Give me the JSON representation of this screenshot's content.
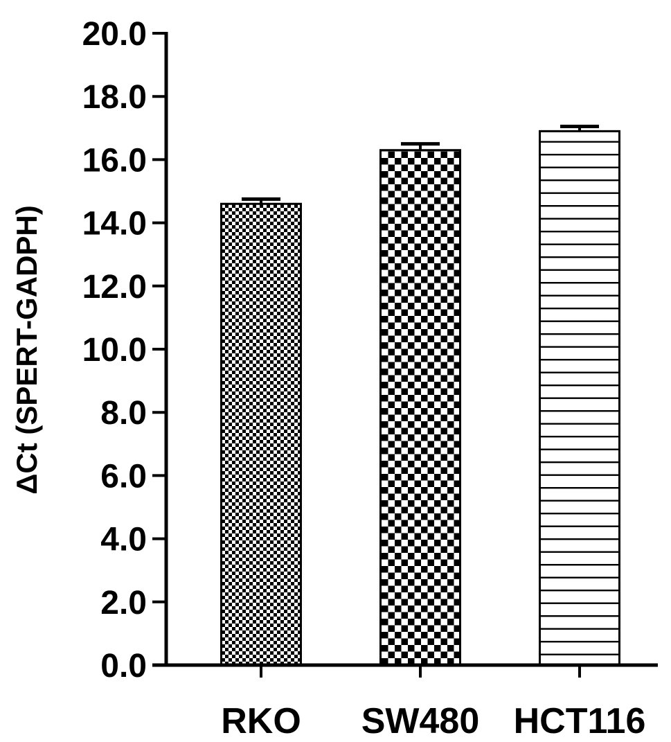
{
  "chart_data": {
    "type": "bar",
    "categories": [
      "RKO",
      "SW480",
      "HCT116"
    ],
    "values": [
      14.6,
      16.3,
      16.9
    ],
    "errors": [
      0.15,
      0.2,
      0.15
    ],
    "patterns": [
      "fine-checker",
      "coarse-checker",
      "horizontal-lines"
    ],
    "ylabel": "ΔCt (SPERT-GADPH)",
    "xlabel": "",
    "title": "",
    "ylim": [
      0,
      20
    ],
    "yticks": [
      0,
      2,
      4,
      6,
      8,
      10,
      12,
      14,
      16,
      18,
      20
    ],
    "ytick_labels": [
      "0.0",
      "2.0",
      "4.0",
      "6.0",
      "8.0",
      "10.0",
      "12.0",
      "14.0",
      "16.0",
      "18.0",
      "20.0"
    ],
    "grid": false,
    "legend": "none",
    "colors": {
      "bar_stroke": "#000000",
      "pattern_dark": "#000000",
      "pattern_light": "#ffffff"
    }
  }
}
